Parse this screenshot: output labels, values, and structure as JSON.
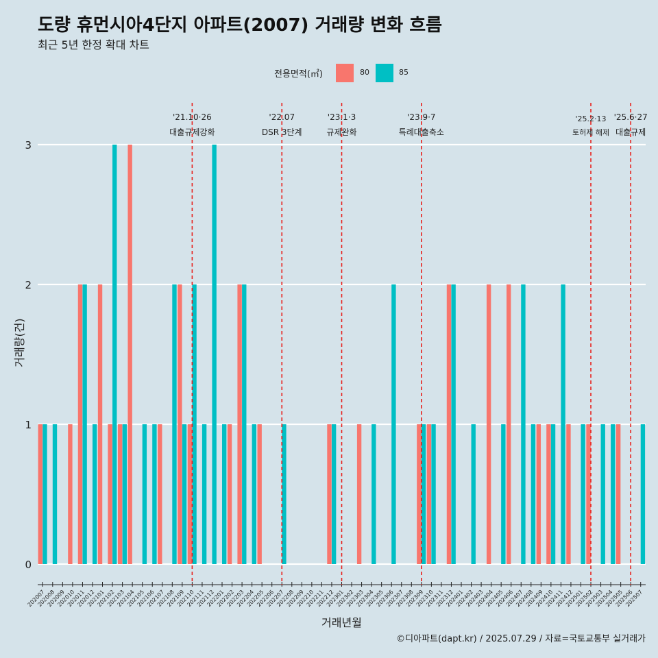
{
  "title": "도량 휴먼시아4단지 아파트(2007) 거래량 변화 흐름",
  "subtitle": "최근 5년 한정 확대 차트",
  "caption": "©디아파트(dapt.kr) / 2025.07.29 / 자료=국토교통부 실거래가",
  "legend": {
    "title": "전용면적(㎡)",
    "items": [
      {
        "label": "80",
        "color": "#f8766d"
      },
      {
        "label": "85",
        "color": "#00bfc4"
      }
    ]
  },
  "chart_data": {
    "type": "bar",
    "title": "도량 휴먼시아4단지 아파트(2007) 거래량 변화 흐름",
    "xlabel": "거래년월",
    "ylabel": "거래량(건)",
    "ylim": [
      0,
      3
    ],
    "yticks": [
      0,
      1,
      2,
      3
    ],
    "categories": [
      "202007",
      "202008",
      "202009",
      "202010",
      "202011",
      "202012",
      "202101",
      "202102",
      "202103",
      "202104",
      "202105",
      "202106",
      "202107",
      "202108",
      "202109",
      "202110",
      "202111",
      "202112",
      "202201",
      "202202",
      "202203",
      "202204",
      "202205",
      "202206",
      "202207",
      "202208",
      "202209",
      "202210",
      "202211",
      "202212",
      "202301",
      "202302",
      "202303",
      "202304",
      "202305",
      "202306",
      "202307",
      "202308",
      "202309",
      "202310",
      "202311",
      "202312",
      "202401",
      "202402",
      "202403",
      "202404",
      "202405",
      "202406",
      "202407",
      "202408",
      "202409",
      "202410",
      "202411",
      "202412",
      "202501",
      "202502",
      "202503",
      "202504",
      "202505",
      "202506",
      "202507"
    ],
    "series": [
      {
        "name": "80",
        "color": "#f8766d",
        "values": [
          1,
          0,
          0,
          1,
          2,
          0,
          2,
          1,
          1,
          3,
          0,
          0,
          1,
          0,
          2,
          1,
          0,
          0,
          0,
          1,
          2,
          0,
          1,
          0,
          0,
          0,
          0,
          0,
          0,
          1,
          0,
          0,
          1,
          0,
          0,
          0,
          0,
          0,
          1,
          1,
          0,
          2,
          0,
          0,
          0,
          2,
          0,
          2,
          0,
          0,
          1,
          1,
          0,
          1,
          0,
          1,
          0,
          0,
          1,
          0,
          0
        ]
      },
      {
        "name": "85",
        "color": "#00bfc4",
        "values": [
          1,
          1,
          0,
          0,
          2,
          1,
          0,
          3,
          1,
          0,
          1,
          1,
          0,
          2,
          1,
          2,
          1,
          3,
          1,
          0,
          2,
          1,
          0,
          0,
          1,
          0,
          0,
          0,
          0,
          1,
          0,
          0,
          0,
          1,
          0,
          2,
          0,
          0,
          1,
          1,
          0,
          2,
          0,
          1,
          0,
          0,
          1,
          0,
          2,
          1,
          0,
          1,
          2,
          0,
          1,
          0,
          1,
          1,
          0,
          0,
          1
        ]
      }
    ],
    "events": [
      {
        "at": "202110",
        "line1": "'21.10·26",
        "line2": "대출규제강화"
      },
      {
        "at": "202207",
        "line1": "'22.07",
        "line2": "DSR 3단계"
      },
      {
        "at": "202301",
        "line1": "'23.1·3",
        "line2": "규제완화"
      },
      {
        "at": "202309",
        "line1": "'23.9·7",
        "line2": "특례대출축소"
      },
      {
        "at": "202502",
        "line1": "'25.2·13",
        "line2": "토허제 해제"
      },
      {
        "at": "202506",
        "line1": "'25.6·27",
        "line2": "대출규제"
      }
    ]
  }
}
